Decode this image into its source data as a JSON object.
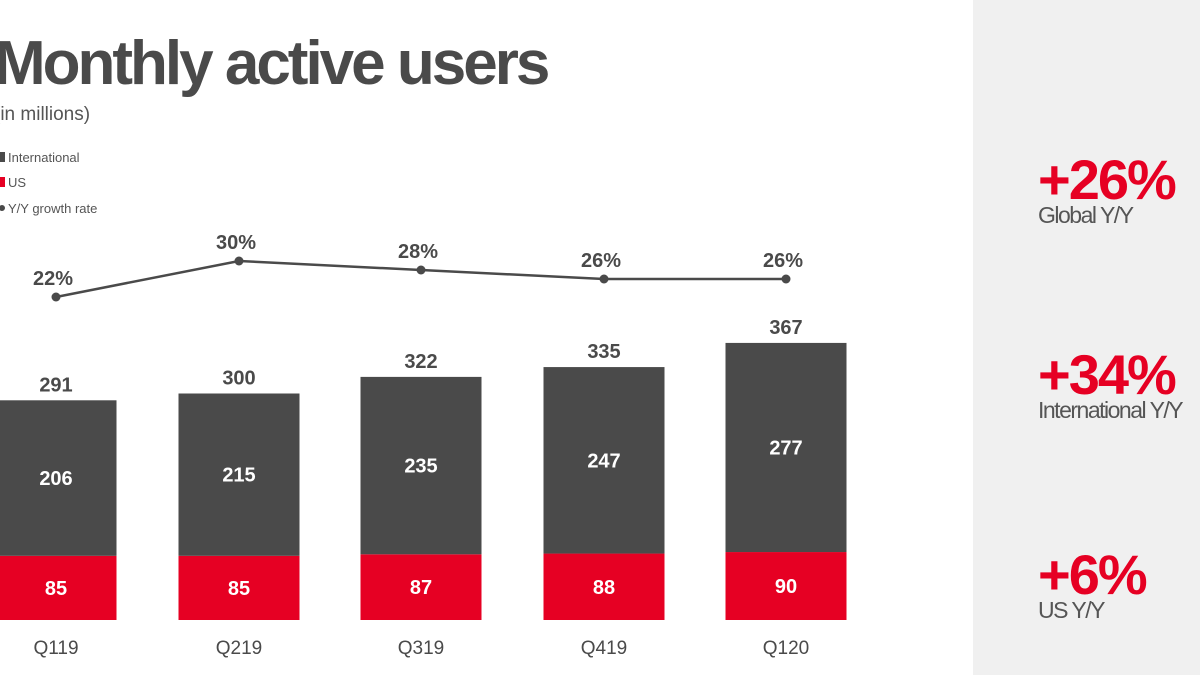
{
  "title": "Monthly active users",
  "subtitle": "(in millions)",
  "legend": [
    {
      "label": "International",
      "marker": "square",
      "color": "#4a4a4a"
    },
    {
      "label": "US",
      "marker": "square",
      "color": "#e60023"
    },
    {
      "label": "Y/Y growth rate",
      "marker": "dot",
      "color": "#4a4a4a"
    }
  ],
  "chart_data": {
    "type": "bar",
    "stacked": true,
    "categories": [
      "Q119",
      "Q219",
      "Q319",
      "Q419",
      "Q120"
    ],
    "series": [
      {
        "name": "US",
        "values": [
          85,
          85,
          87,
          88,
          90
        ],
        "color": "#e60023"
      },
      {
        "name": "International",
        "values": [
          206,
          215,
          235,
          247,
          277
        ],
        "color": "#4a4a4a"
      }
    ],
    "totals": [
      291,
      300,
      322,
      335,
      367
    ],
    "growth_line": {
      "name": "Y/Y growth rate",
      "values": [
        22,
        30,
        28,
        26,
        26
      ],
      "labels": [
        "22%",
        "30%",
        "28%",
        "26%",
        "26%"
      ],
      "color": "#4a4a4a"
    },
    "title": "Monthly active users",
    "subtitle": "(in millions)",
    "xlabel": "",
    "ylabel": "",
    "grid": false,
    "legend_position": "top-left"
  },
  "side_stats": [
    {
      "value": "+26%",
      "label": "Global Y/Y",
      "color": "#e60023"
    },
    {
      "value": "+34%",
      "label": "International Y/Y",
      "color": "#e60023"
    },
    {
      "value": "+6%",
      "label": "US Y/Y",
      "color": "#e60023"
    }
  ],
  "colors": {
    "background": "#ffffff",
    "panel": "#f0f0f0",
    "international": "#4a4a4a",
    "us": "#e60023",
    "text": "#4a4a4a"
  }
}
